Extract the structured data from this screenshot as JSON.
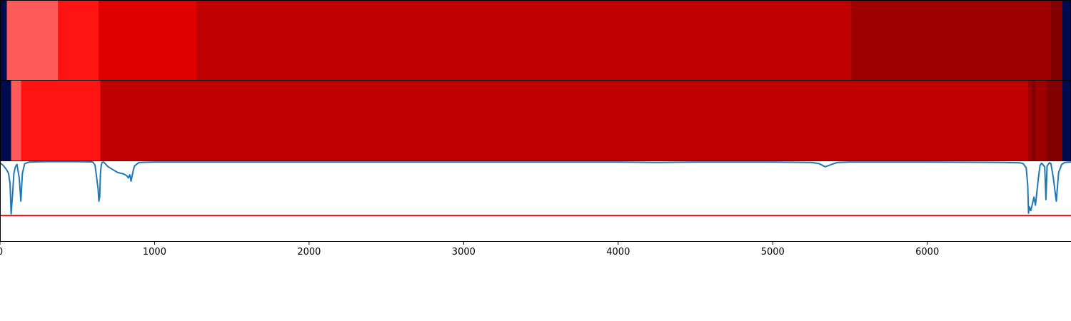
{
  "chart_data": {
    "type": "heatmap",
    "title": "",
    "xlabel": "",
    "ylabel": "",
    "xlim": [
      0,
      6930
    ],
    "x_ticks": [
      0,
      1000,
      2000,
      3000,
      4000,
      5000,
      6000
    ],
    "x_tick_labels": [
      "0",
      "1000",
      "2000",
      "3000",
      "4000",
      "5000",
      "6000"
    ],
    "grid": false,
    "colors": {
      "background": "#000b4d",
      "line": "#1f77b4",
      "threshold": "#e8100e",
      "axis": "#000000"
    },
    "heatmap_rows": [
      {
        "segments": [
          {
            "start": 0,
            "end": 44,
            "color": "#000b4d"
          },
          {
            "start": 44,
            "end": 374,
            "color": "#ff5a5a"
          },
          {
            "start": 374,
            "end": 638,
            "color": "#ff1414"
          },
          {
            "start": 638,
            "end": 1270,
            "color": "#e10000"
          },
          {
            "start": 1270,
            "end": 5506,
            "color": "#c00000"
          },
          {
            "start": 5506,
            "end": 6798,
            "color": "#9e0000"
          },
          {
            "start": 6798,
            "end": 6875,
            "color": "#830000"
          },
          {
            "start": 6875,
            "end": 6930,
            "color": "#000b4d"
          }
        ]
      },
      {
        "segments": [
          {
            "start": 0,
            "end": 72,
            "color": "#000b4d"
          },
          {
            "start": 72,
            "end": 136,
            "color": "#ff5a5a"
          },
          {
            "start": 136,
            "end": 648,
            "color": "#ff1414"
          },
          {
            "start": 648,
            "end": 6652,
            "color": "#c00000"
          },
          {
            "start": 6652,
            "end": 6675,
            "color": "#9e0000"
          },
          {
            "start": 6675,
            "end": 6700,
            "color": "#830000"
          },
          {
            "start": 6700,
            "end": 6770,
            "color": "#9e0000"
          },
          {
            "start": 6770,
            "end": 6875,
            "color": "#830000"
          },
          {
            "start": 6875,
            "end": 6930,
            "color": "#000b4d"
          }
        ]
      }
    ],
    "line_panel": {
      "ylim": [
        0,
        1
      ],
      "threshold": 0.32,
      "series": [
        {
          "x": [
            0,
            20,
            40,
            55,
            65,
            72,
            80,
            90,
            100,
            110,
            125,
            135,
            145,
            160,
            190,
            300,
            500,
            600,
            615,
            625,
            635,
            640,
            645,
            650,
            655,
            660,
            670,
            700,
            760,
            800,
            820,
            830,
            840,
            848,
            855,
            862,
            870,
            900,
            1000,
            2000,
            3000,
            4000,
            4250,
            4500,
            5000,
            5250,
            5300,
            5340,
            5380,
            5420,
            5500,
            6000,
            6500,
            6600,
            6620,
            6640,
            6650,
            6655,
            6660,
            6670,
            6690,
            6700,
            6710,
            6720,
            6730,
            6740,
            6760,
            6768,
            6775,
            6790,
            6800,
            6815,
            6835,
            6850,
            6870,
            6890,
            6930
          ],
          "y": [
            0.98,
            0.95,
            0.9,
            0.85,
            0.72,
            0.34,
            0.55,
            0.85,
            0.93,
            0.96,
            0.78,
            0.5,
            0.85,
            0.97,
            0.99,
            0.995,
            0.995,
            0.99,
            0.95,
            0.8,
            0.65,
            0.5,
            0.55,
            0.85,
            0.95,
            0.985,
            0.99,
            0.93,
            0.86,
            0.84,
            0.82,
            0.79,
            0.83,
            0.75,
            0.82,
            0.88,
            0.94,
            0.985,
            0.99,
            0.99,
            0.99,
            0.99,
            0.985,
            0.99,
            0.99,
            0.985,
            0.97,
            0.93,
            0.96,
            0.985,
            0.99,
            0.99,
            0.985,
            0.98,
            0.97,
            0.92,
            0.7,
            0.35,
            0.43,
            0.38,
            0.55,
            0.45,
            0.63,
            0.8,
            0.95,
            0.975,
            0.93,
            0.52,
            0.94,
            0.98,
            0.97,
            0.8,
            0.5,
            0.86,
            0.96,
            0.985,
            0.99
          ]
        }
      ]
    }
  }
}
